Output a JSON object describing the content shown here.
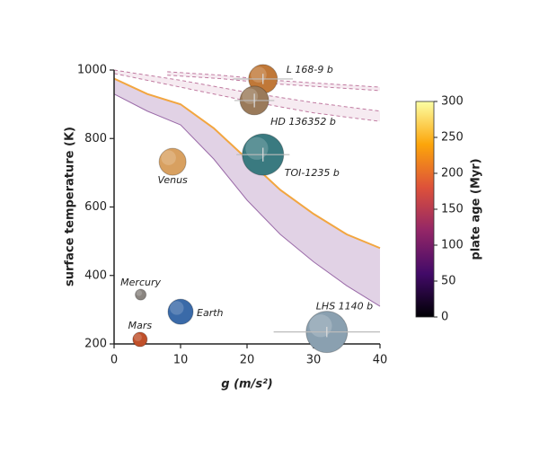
{
  "chart_data": {
    "type": "scatter",
    "xlabel": "g (m/s²)",
    "ylabel": "surface temperature (K)",
    "xlim": [
      0,
      40
    ],
    "xticks": [
      0,
      10,
      20,
      30,
      40
    ],
    "ylim": [
      200,
      1000
    ],
    "yticks": [
      200,
      400,
      600,
      800,
      1000
    ],
    "planets": [
      {
        "name": "Mercury",
        "g": 4,
        "T": 344,
        "g_err": null,
        "T_err": null,
        "color": "#8a8580"
      },
      {
        "name": "Venus",
        "g": 8.8,
        "T": 732,
        "g_err": null,
        "T_err": null,
        "color": "#d8a060"
      },
      {
        "name": "Earth",
        "g": 10,
        "T": 294,
        "g_err": null,
        "T_err": null,
        "color": "#3a6aa8"
      },
      {
        "name": "Mars",
        "g": 3.9,
        "T": 213,
        "g_err": null,
        "T_err": null,
        "color": "#c0502a"
      },
      {
        "name": "L 168-9 b",
        "g": 22.4,
        "T": 974,
        "g_err": 4.5,
        "T_err": 15,
        "color": "#c07838"
      },
      {
        "name": "HD 136352 b",
        "g": 21.1,
        "T": 911,
        "g_err": 3,
        "T_err": 20,
        "color": "#9a7a5a"
      },
      {
        "name": "TOI-1235 b",
        "g": 22.4,
        "T": 753,
        "g_err": 4,
        "T_err": 20,
        "color": "#3a7a80"
      },
      {
        "name": "LHS 1140 b",
        "g": 32,
        "T": 235,
        "g_err": 8,
        "T_err": 15,
        "color": "#8aa0b0"
      }
    ],
    "bands": [
      {
        "color": "#9a6aa8",
        "dashed": false,
        "x": [
          0,
          5,
          10,
          15,
          20,
          25,
          30,
          35,
          40
        ],
        "upper": [
          975,
          930,
          900,
          830,
          740,
          650,
          580,
          520,
          480
        ],
        "lower": [
          930,
          880,
          840,
          740,
          620,
          520,
          440,
          370,
          310
        ]
      },
      {
        "color": "#c07aa0",
        "dashed": true,
        "x": [
          0,
          10,
          20,
          30,
          40
        ],
        "upper": [
          1000,
          970,
          935,
          905,
          880
        ],
        "lower": [
          990,
          950,
          910,
          875,
          850
        ]
      },
      {
        "color": "#c07aa0",
        "dashed": true,
        "x": [
          8,
          16,
          24,
          32,
          40
        ],
        "upper": [
          995,
          985,
          970,
          960,
          950
        ],
        "lower": [
          985,
          975,
          960,
          950,
          940
        ]
      }
    ],
    "colorbar": {
      "label": "plate age (Myr)",
      "lim": [
        0,
        300
      ],
      "ticks": [
        0,
        50,
        100,
        150,
        200,
        250,
        300
      ]
    }
  }
}
